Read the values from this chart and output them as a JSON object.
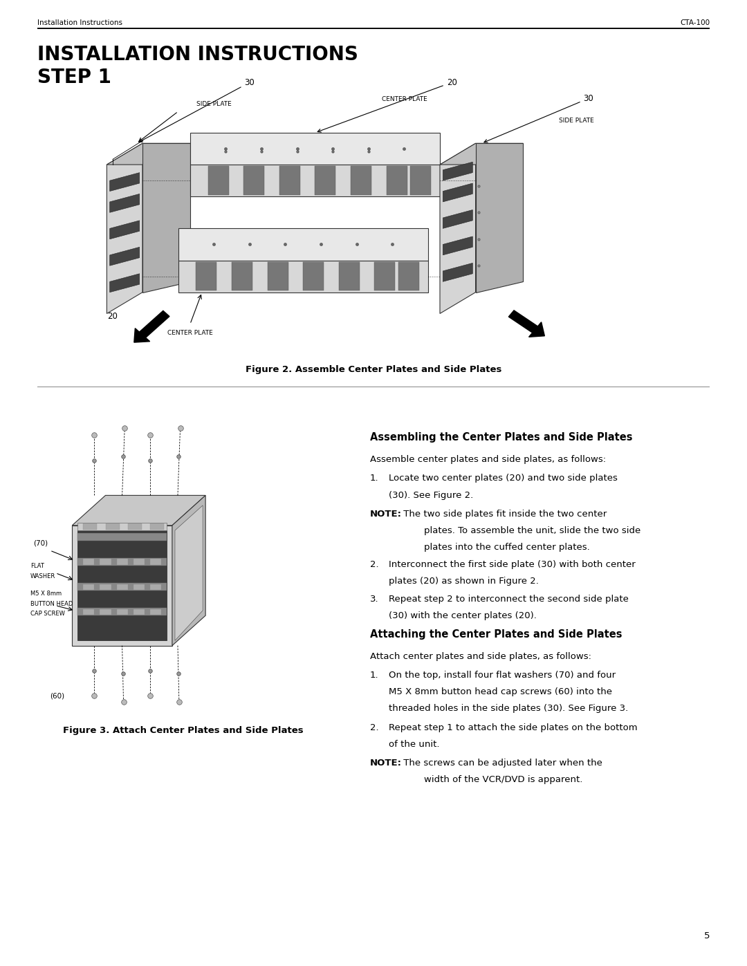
{
  "page_width": 10.8,
  "page_height": 13.97,
  "dpi": 100,
  "background_color": "#ffffff",
  "text_color": "#000000",
  "header_left": "Installation Instructions",
  "header_right": "CTA-100",
  "header_fontsize": 7.5,
  "title_line1": "INSTALLATION INSTRUCTIONS",
  "title_line2": "STEP 1",
  "title_fontsize": 20,
  "fig2_caption": "Figure 2. Assemble Center Plates and Side Plates",
  "fig3_caption": "Figure 3. Attach Center Plates and Side Plates",
  "section1_heading": "Assembling the Center Plates and Side Plates",
  "section1_intro": "Assemble center plates and side plates, as follows:",
  "section1_item1a": "Locate two center plates (20) and two side plates",
  "section1_item1b": "(30). See Figure 2.",
  "note1_text": "The two side plates fit inside the two center",
  "note1_text2": "plates. To assemble the unit, slide the two side",
  "note1_text3": "plates into the cuffed center plates.",
  "section1_item2a": "Interconnect the first side plate (30) with both center",
  "section1_item2b": "plates (20) as shown in Figure 2.",
  "section1_item3a": "Repeat step 2 to interconnect the second side plate",
  "section1_item3b": "(30) with the center plates (20).",
  "section2_heading": "Attaching the Center Plates and Side Plates",
  "section2_intro": "Attach center plates and side plates, as follows:",
  "section2_item1a": "On the top, install four flat washers (70) and four",
  "section2_item1b": "M5 X 8mm button head cap screws (60) into the",
  "section2_item1c": "threaded holes in the side plates (30). See Figure 3.",
  "section2_item2a": "Repeat step 1 to attach the side plates on the bottom",
  "section2_item2b": "of the unit.",
  "note2_text1": "The screws can be adjusted later when the",
  "note2_text2": "width of the VCR/DVD is apparent.",
  "page_number": "5",
  "body_fontsize": 9.5,
  "heading_fontsize": 10.5,
  "note_indent": 0.085
}
